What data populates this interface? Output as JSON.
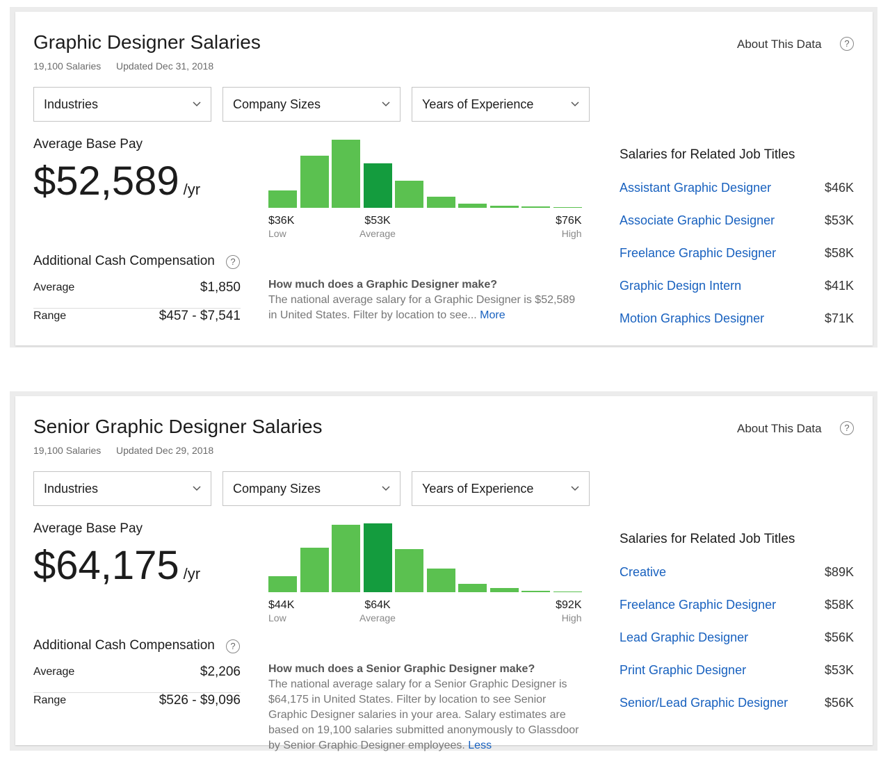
{
  "cards": [
    {
      "title": "Graphic Designer Salaries",
      "salary_count": "19,100 Salaries",
      "updated": "Updated Dec 31, 2018",
      "about": "About This Data",
      "filters": [
        "Industries",
        "Company Sizes",
        "Years of Experience"
      ],
      "pay_label": "Average Base Pay",
      "pay": "$52,589",
      "pay_unit": "/yr",
      "histogram": {
        "values": [
          25,
          75,
          98,
          64,
          39,
          16,
          6,
          3,
          2,
          1
        ],
        "color": "#5bc150",
        "highlight_color": "#149c3e",
        "highlight_index": 3,
        "markers": [
          {
            "amount": "$36K",
            "label": "Low"
          },
          {
            "amount": "$53K",
            "label": "Average"
          },
          {
            "amount": "$76K",
            "label": "High"
          }
        ]
      },
      "additional": {
        "heading": "Additional Cash Compensation",
        "rows": [
          [
            "Average",
            "$1,850"
          ],
          [
            "Range",
            "$457 - $7,541"
          ]
        ]
      },
      "description": {
        "question": "How much does a Graphic Designer make?",
        "text": "The national average salary for a Graphic Designer is $52,589 in United States. Filter by location to see...",
        "link": "More"
      },
      "related": {
        "heading": "Salaries for Related Job Titles",
        "items": [
          {
            "title": "Assistant Graphic Designer",
            "pay": "$46K"
          },
          {
            "title": "Associate Graphic Designer",
            "pay": "$53K"
          },
          {
            "title": "Freelance Graphic Designer",
            "pay": "$58K"
          },
          {
            "title": "Graphic Design Intern",
            "pay": "$41K"
          },
          {
            "title": "Motion Graphics Designer",
            "pay": "$71K"
          }
        ]
      }
    },
    {
      "title": "Senior Graphic Designer Salaries",
      "salary_count": "19,100 Salaries",
      "updated": "Updated Dec 29, 2018",
      "about": "About This Data",
      "filters": [
        "Industries",
        "Company Sizes",
        "Years of Experience"
      ],
      "pay_label": "Average Base Pay",
      "pay": "$64,175",
      "pay_unit": "/yr",
      "histogram": {
        "values": [
          23,
          64,
          97,
          99,
          62,
          34,
          12,
          6,
          2,
          1
        ],
        "color": "#5bc150",
        "highlight_color": "#149c3e",
        "highlight_index": 3,
        "markers": [
          {
            "amount": "$44K",
            "label": "Low"
          },
          {
            "amount": "$64K",
            "label": "Average"
          },
          {
            "amount": "$92K",
            "label": "High"
          }
        ]
      },
      "additional": {
        "heading": "Additional Cash Compensation",
        "rows": [
          [
            "Average",
            "$2,206"
          ],
          [
            "Range",
            "$526 - $9,096"
          ]
        ]
      },
      "description": {
        "question": "How much does a Senior Graphic Designer make?",
        "text": "The national average salary for a Senior Graphic Designer is $64,175 in United States. Filter by location to see Senior Graphic Designer salaries in your area. Salary estimates are based on 19,100 salaries submitted anonymously to Glassdoor by Senior Graphic Designer employees.",
        "link": "Less"
      },
      "related": {
        "heading": "Salaries for Related Job Titles",
        "items": [
          {
            "title": "Creative",
            "pay": "$89K"
          },
          {
            "title": "Freelance Graphic Designer",
            "pay": "$58K"
          },
          {
            "title": "Lead Graphic Designer",
            "pay": "$56K"
          },
          {
            "title": "Print Graphic Designer",
            "pay": "$53K"
          },
          {
            "title": "Senior/Lead Graphic Designer",
            "pay": "$56K"
          }
        ]
      }
    }
  ]
}
